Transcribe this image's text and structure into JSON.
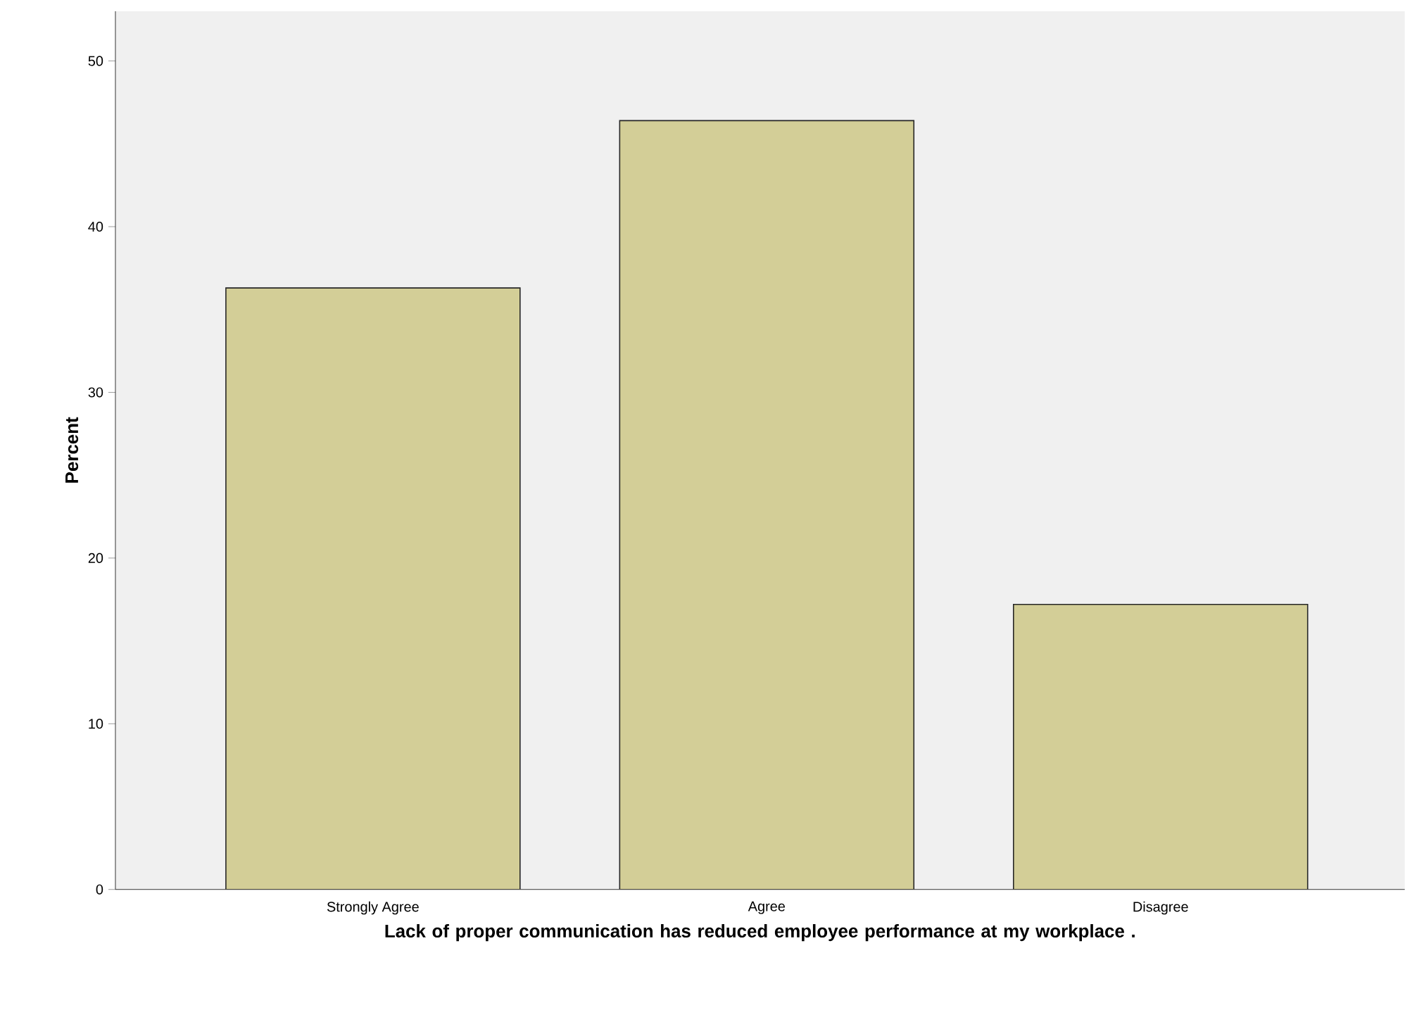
{
  "chart_data": {
    "type": "bar",
    "xlabel": "Lack of proper communication has reduced employee performance at my workplace .",
    "ylabel": "Percent",
    "categories": [
      "Strongly Agree",
      "Agree",
      "Disagree"
    ],
    "values": [
      36.3,
      46.4,
      17.2
    ],
    "color": "#d3ce97",
    "ylim": [
      0,
      53
    ],
    "yticks": [
      0,
      10,
      20,
      30,
      40,
      50
    ]
  }
}
